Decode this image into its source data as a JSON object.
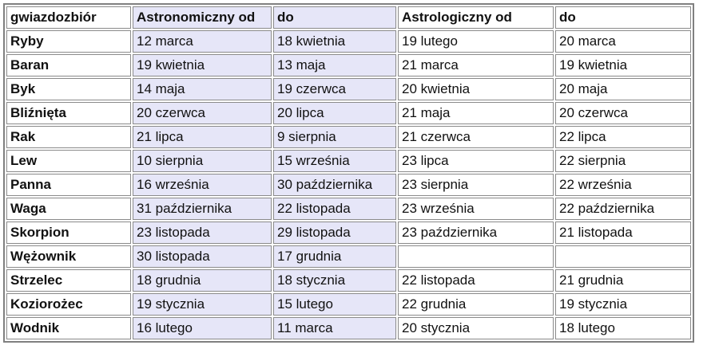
{
  "headers": [
    "gwiazdozbiór",
    "Astronomiczny od",
    "do",
    "Astrologiczny od",
    "do"
  ],
  "colors": {
    "astronomical_bg": "#e6e6f8",
    "border": "#8a8a8a"
  },
  "rows": [
    [
      "Ryby",
      "12 marca",
      "18 kwietnia",
      "19 lutego",
      "20 marca"
    ],
    [
      "Baran",
      "19 kwietnia",
      "13 maja",
      "21 marca",
      "19 kwietnia"
    ],
    [
      "Byk",
      "14 maja",
      "19 czerwca",
      "20 kwietnia",
      "20 maja"
    ],
    [
      "Bliźnięta",
      "20 czerwca",
      "20 lipca",
      "21 maja",
      "20 czerwca"
    ],
    [
      "Rak",
      "21 lipca",
      "9 sierpnia",
      "21 czerwca",
      "22 lipca"
    ],
    [
      "Lew",
      "10 sierpnia",
      "15 września",
      "23 lipca",
      "22 sierpnia"
    ],
    [
      "Panna",
      "16 września",
      "30 października",
      "23 sierpnia",
      "22 września"
    ],
    [
      "Waga",
      "31 października",
      "22 listopada",
      "23 września",
      "22 października"
    ],
    [
      "Skorpion",
      "23 listopada",
      "29 listopada",
      "23 października",
      "21 listopada"
    ],
    [
      "Wężownik",
      "30 listopada",
      "17 grudnia",
      "",
      ""
    ],
    [
      "Strzelec",
      "18 grudnia",
      "18 stycznia",
      "22 listopada",
      "21 grudnia"
    ],
    [
      "Koziorożec",
      "19 stycznia",
      "15 lutego",
      "22 grudnia",
      "19 stycznia"
    ],
    [
      "Wodnik",
      "16 lutego",
      "11 marca",
      "20 stycznia",
      "18 lutego"
    ]
  ]
}
